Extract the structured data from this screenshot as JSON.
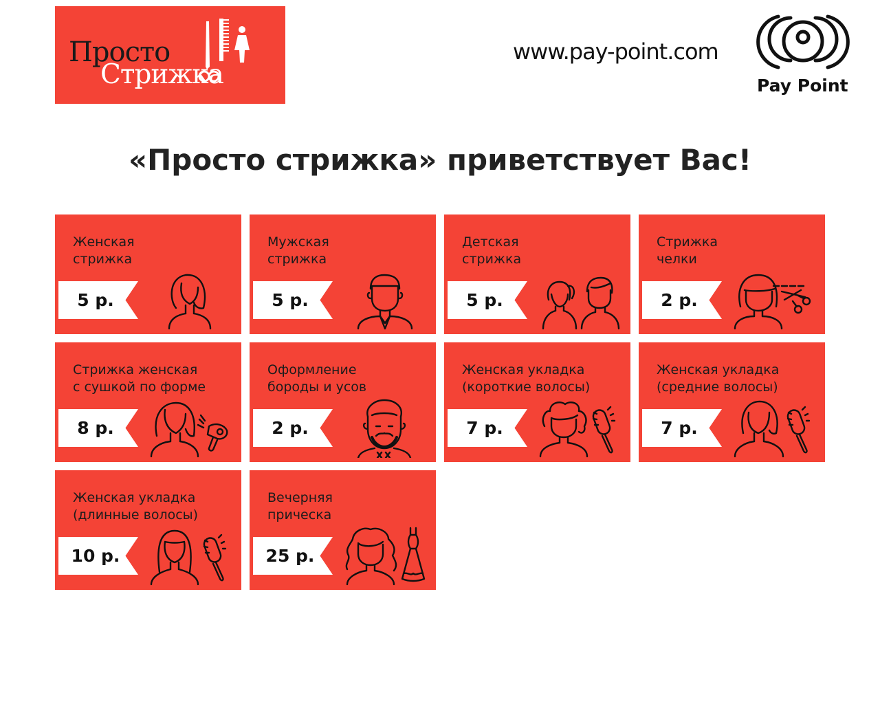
{
  "brand": {
    "logo_line1": "Просто",
    "logo_line2": "Стрижка",
    "accent_color": "#f44336"
  },
  "header": {
    "url": "www.pay-point.com",
    "payment_brand": "Pay Point"
  },
  "welcome": "«Просто стрижка» приветствует Вас!",
  "services": [
    {
      "title": "Женская\nстрижка",
      "price": "5 р.",
      "icon": "woman-haircut-icon"
    },
    {
      "title": "Мужская\nстрижка",
      "price": "5 р.",
      "icon": "man-haircut-icon"
    },
    {
      "title": "Детская\nстрижка",
      "price": "5 р.",
      "icon": "kids-haircut-icon"
    },
    {
      "title": "Стрижка\nчелки",
      "price": "2 р.",
      "icon": "bangs-cut-icon"
    },
    {
      "title": "Стрижка женская\nс сушкой по форме",
      "price": "8 р.",
      "icon": "hairdryer-styling-icon"
    },
    {
      "title": "Оформление\nбороды и усов",
      "price": "2 р.",
      "icon": "beard-icon"
    },
    {
      "title": "Женская укладка\n(короткие волосы)",
      "price": "7 р.",
      "icon": "short-hair-styling-icon"
    },
    {
      "title": "Женская укладка\n(средние волосы)",
      "price": "7 р.",
      "icon": "medium-hair-styling-icon"
    },
    {
      "title": "Женская укладка\n(длинные волосы)",
      "price": "10 р.",
      "icon": "long-hair-styling-icon"
    },
    {
      "title": "Вечерняя\nприческа",
      "price": "25 р.",
      "icon": "evening-hairstyle-icon"
    }
  ]
}
